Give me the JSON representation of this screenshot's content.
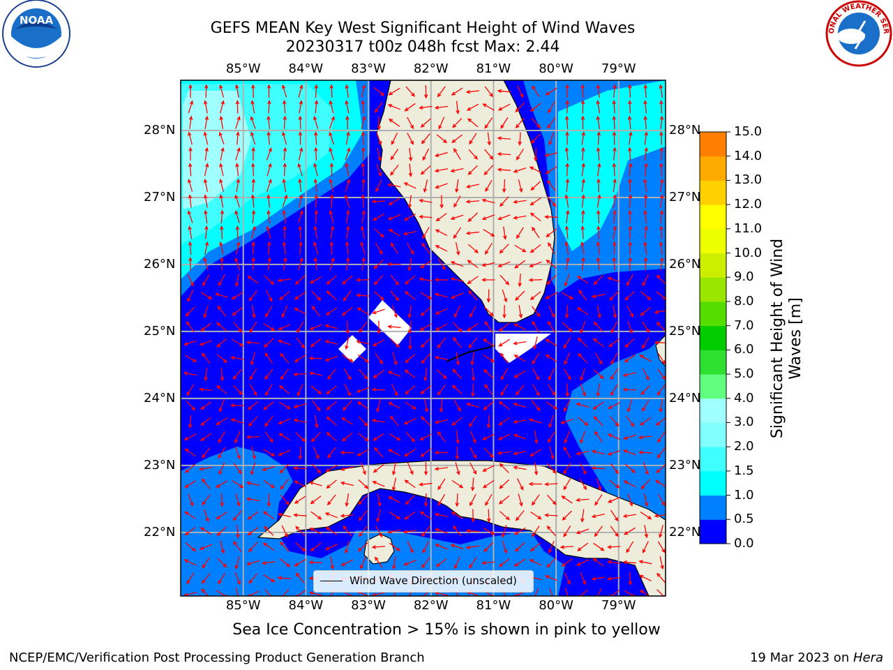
{
  "title": {
    "line1": "GEFS MEAN Key West Significant Height of Wind Waves",
    "line2": "20230317 t00z 048h fcst   Max: 2.44"
  },
  "logos": {
    "left": {
      "name": "noaa-logo",
      "text": "NOAA"
    },
    "right": {
      "name": "nws-logo",
      "text": "NATIONAL WEATHER SERVICE"
    }
  },
  "map": {
    "lon_labels": [
      "85°W",
      "84°W",
      "83°W",
      "82°W",
      "81°W",
      "80°W",
      "79°W"
    ],
    "lat_labels": [
      "28°N",
      "27°N",
      "26°N",
      "25°N",
      "24°N",
      "23°N",
      "22°N"
    ],
    "extent": {
      "lon_min": -86.0,
      "lon_max": -78.25,
      "lat_min": 21.05,
      "lat_max": 28.75
    },
    "land_color": "#eeeddc",
    "grid_color": "#b0b0b0",
    "arrow_color": "#ff0000",
    "legend_label": "Wind Wave Direction (unscaled)"
  },
  "colorbar": {
    "label": "Significant Height of Wind Waves [m]",
    "ticks": [
      "15.0",
      "14.0",
      "13.0",
      "12.0",
      "11.0",
      "10.0",
      "9.0",
      "8.0",
      "7.0",
      "6.0",
      "5.0",
      "4.0",
      "3.0",
      "2.0",
      "1.5",
      "1.0",
      "0.5",
      "0.0"
    ],
    "colors_bottom_to_top": [
      "#0000ff",
      "#0080ff",
      "#00ffff",
      "#40ffff",
      "#80ffff",
      "#a0ffff",
      "#60ff80",
      "#30e030",
      "#00cc00",
      "#55dd00",
      "#99e600",
      "#ccee00",
      "#eeff00",
      "#ffff00",
      "#ffd000",
      "#ffaa00",
      "#ff7f00",
      "#ff5500",
      "#ff2a00",
      "#ff0000"
    ]
  },
  "sea_ice_note": "Sea Ice Concentration > 15% is shown in pink to yellow",
  "footer": {
    "left": "NCEP/EMC/Verification Post Processing Product Generation Branch",
    "right_date": "19 Mar 2023 on ",
    "right_host": "Hera"
  }
}
